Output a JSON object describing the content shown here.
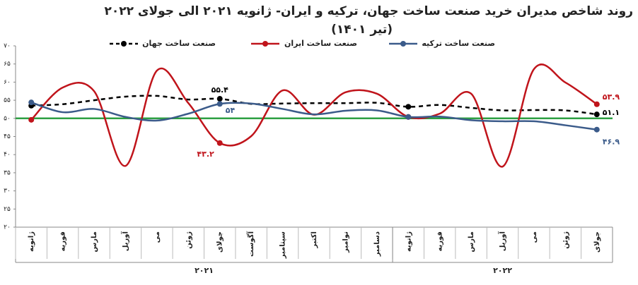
{
  "chart_data": {
    "type": "line",
    "title": "روند شاخص مدیران خرید صنعت ساخت جهان، ترکیه و ایران- ژانویه ۲۰۲۱ الی جولای ۲۰۲۲",
    "subtitle": "(تیر ۱۴۰۱)",
    "categories": [
      "ژانویه",
      "فوریه",
      "مارس",
      "آوریل",
      "می",
      "ژوئن",
      "جولای",
      "آگوست",
      "سپتامبر",
      "اکتبر",
      "نوامبر",
      "دسامبر",
      "ژانویه",
      "فوریه",
      "مارس",
      "آوریل",
      "می",
      "ژوئن",
      "جولای"
    ],
    "group_labels": [
      "۲۰۲۱",
      "۲۰۲۲"
    ],
    "ylim": [
      20,
      70
    ],
    "yticks": [
      {
        "value": 20,
        "label": "۲۰"
      },
      {
        "value": 25,
        "label": "۲۵"
      },
      {
        "value": 30,
        "label": "۳۰"
      },
      {
        "value": 35,
        "label": "۳۵"
      },
      {
        "value": 40,
        "label": "۴۰"
      },
      {
        "value": 45,
        "label": "۴۵"
      },
      {
        "value": 50,
        "label": "۵۰"
      },
      {
        "value": 55,
        "label": "۵۵"
      },
      {
        "value": 60,
        "label": "۶۰"
      },
      {
        "value": 65,
        "label": "۶۵"
      },
      {
        "value": 70,
        "label": "۷۰"
      }
    ],
    "reference_line": {
      "value": 50,
      "color": "#2ea043"
    },
    "series": [
      {
        "name": "صنعت ساخت جهان",
        "color": "#000000",
        "dashed": true,
        "values": [
          53.5,
          53.9,
          55,
          56,
          56.2,
          55.2,
          55.4,
          54,
          54.1,
          54.2,
          54.2,
          54.3,
          53.2,
          53.7,
          52.9,
          52.2,
          52.3,
          52.2,
          51.1
        ],
        "value_labels": [
          null,
          null,
          null,
          null,
          null,
          null,
          "۵۵.۴",
          null,
          null,
          null,
          null,
          null,
          null,
          null,
          null,
          null,
          null,
          null,
          "۵۱.۱"
        ]
      },
      {
        "name": "صنعت ساخت ایران",
        "color": "#c0141b",
        "dashed": false,
        "values": [
          49.6,
          58.5,
          57.5,
          36.9,
          63.2,
          54.2,
          43.2,
          45.1,
          57.7,
          51,
          57.2,
          56.8,
          50.4,
          51.3,
          56.8,
          36.7,
          63.6,
          59.9,
          53.9
        ],
        "value_labels": [
          null,
          null,
          null,
          null,
          null,
          null,
          "۴۳.۲",
          null,
          null,
          null,
          null,
          null,
          null,
          null,
          null,
          null,
          null,
          null,
          "۵۳.۹"
        ]
      },
      {
        "name": "صنعت ساخت ترکیه",
        "color": "#3b5b8a",
        "dashed": false,
        "values": [
          54.4,
          51.7,
          52.6,
          50.4,
          49.4,
          51.3,
          54,
          54.1,
          52.6,
          51.1,
          52.1,
          52.2,
          50.4,
          50.5,
          49.5,
          49.2,
          49.2,
          48.1,
          46.9
        ],
        "value_labels": [
          null,
          null,
          null,
          null,
          null,
          null,
          "۵۴",
          null,
          null,
          null,
          null,
          null,
          null,
          null,
          null,
          null,
          null,
          null,
          "۴۶.۹"
        ]
      }
    ]
  }
}
